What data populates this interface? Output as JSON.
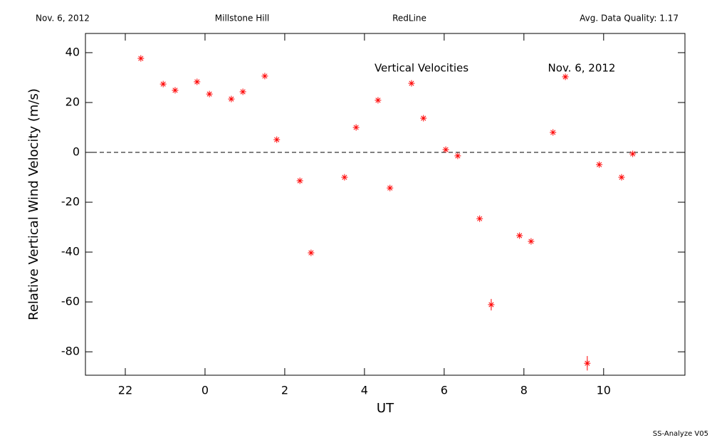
{
  "header": {
    "date": "Nov. 6, 2012",
    "site": "Millstone Hill",
    "instrument": "RedLine",
    "quality": "Avg. Data Quality: 1.17"
  },
  "footer": "SS-Analyze V05",
  "chart_data": {
    "type": "scatter",
    "annotations": [
      "Vertical Velocities",
      "Nov. 6, 2012"
    ],
    "xlabel": "UT",
    "ylabel": "Relative Vertical Wind Velocity (m/s)",
    "x": [
      -1.61,
      -1.05,
      -0.75,
      -0.2,
      0.11,
      0.66,
      0.95,
      1.5,
      1.8,
      2.38,
      2.66,
      3.5,
      3.79,
      4.34,
      4.64,
      5.18,
      5.48,
      6.04,
      6.34,
      6.89,
      7.18,
      7.89,
      8.18,
      8.73,
      9.04,
      9.59,
      9.89,
      10.45,
      10.73
    ],
    "values": [
      37.7,
      27.4,
      24.9,
      28.3,
      23.4,
      21.4,
      24.3,
      30.6,
      5.1,
      -11.4,
      -40.3,
      -10.0,
      10.0,
      20.9,
      -14.3,
      27.7,
      13.7,
      1.1,
      -1.4,
      -26.6,
      -61.1,
      -33.4,
      -35.7,
      8.0,
      30.3,
      -84.6,
      -4.9,
      -10.0,
      -0.6
    ],
    "errors": [
      null,
      null,
      null,
      null,
      null,
      null,
      null,
      null,
      null,
      null,
      null,
      null,
      null,
      null,
      null,
      null,
      null,
      null,
      null,
      null,
      2.3,
      null,
      null,
      null,
      null,
      2.9,
      null,
      null,
      null
    ],
    "color": "#ff0000",
    "xlim": [
      -3,
      12.04
    ],
    "ylim": [
      -89.4,
      47.7
    ],
    "xticks": [
      {
        "value": -2,
        "label": "22"
      },
      0,
      2,
      4,
      6,
      8,
      10
    ],
    "yticks": [
      -80,
      -60,
      -40,
      -20,
      0,
      20,
      40
    ],
    "hline": 0
  }
}
